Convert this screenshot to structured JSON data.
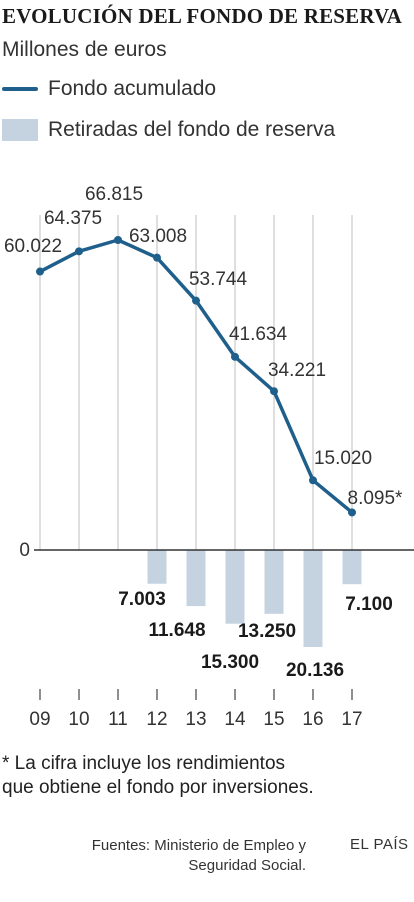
{
  "header": {
    "title": "EVOLUCIÓN DEL FONDO DE RESERVA",
    "subtitle": "Millones de euros"
  },
  "legend": [
    {
      "label": "Fondo acumulado",
      "type": "line",
      "color": "#1f5f8b"
    },
    {
      "label": "Retiradas del fondo de reserva",
      "type": "bar",
      "color": "#c5d3e0"
    }
  ],
  "chart_data": {
    "type": "line",
    "categories": [
      "09",
      "10",
      "11",
      "12",
      "13",
      "14",
      "15",
      "16",
      "17"
    ],
    "series": [
      {
        "name": "Fondo acumulado",
        "values": [
          60022,
          64375,
          66815,
          63008,
          53744,
          41634,
          34221,
          15020,
          8095
        ],
        "labels": [
          "60.022",
          "64.375",
          "66.815",
          "63.008",
          "53.744",
          "41.634",
          "34.221",
          "15.020",
          "8.095*"
        ],
        "color": "#1f5f8b"
      },
      {
        "name": "Retiradas del fondo de reserva",
        "type": "bar",
        "values": [
          null,
          null,
          null,
          7003,
          11648,
          15300,
          13250,
          20136,
          7100
        ],
        "labels": [
          "",
          "",
          "",
          "7.003",
          "11.648",
          "15.300",
          "13.250",
          "20.136",
          "7.100"
        ],
        "color": "#c5d3e0"
      }
    ],
    "yzero_label": "0",
    "ylim": [
      -22000,
      67000
    ],
    "grid": "vertical"
  },
  "footnote": {
    "line1": "* La cifra incluye los rendimientos",
    "line2": "que obtiene el fondo por inversiones."
  },
  "sources": {
    "line1": "Fuentes: Ministerio de Empleo y",
    "line2": "Seguridad Social."
  },
  "brand": "EL PAÍS"
}
